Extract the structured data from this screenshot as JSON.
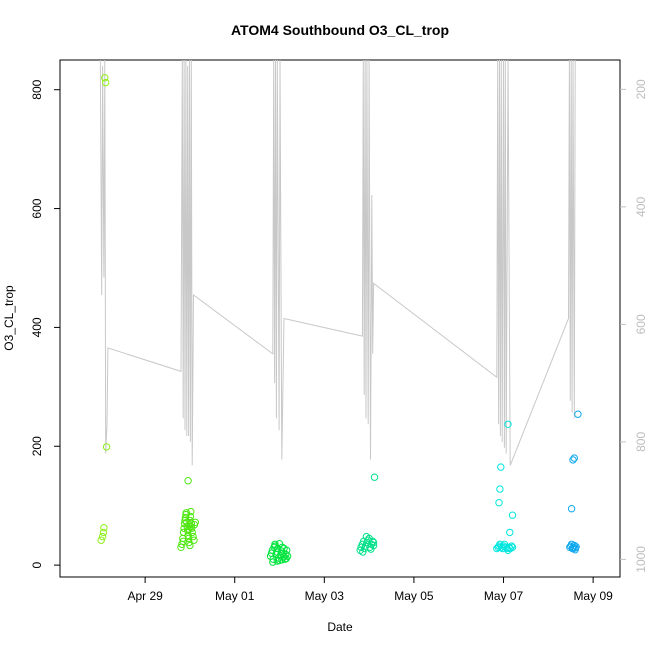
{
  "chart_data": {
    "type": "scatter",
    "title": "ATOM4 Southbound O3_CL_trop",
    "xlabel": "Date",
    "ylabel": "O3_CL_trop",
    "x_unit": "day of 2018 (Apr 29 = 0)",
    "xlim": [
      -1.9,
      10.6
    ],
    "ylim": [
      -20,
      850
    ],
    "x_ticks": [
      {
        "value": 0,
        "label": "Apr 29"
      },
      {
        "value": 2,
        "label": "May 01"
      },
      {
        "value": 4,
        "label": "May 03"
      },
      {
        "value": 6,
        "label": "May 05"
      },
      {
        "value": 8,
        "label": "May 07"
      },
      {
        "value": 10,
        "label": "May 09"
      }
    ],
    "y_ticks": [
      0,
      200,
      400,
      600,
      800
    ],
    "y2": {
      "reversed": true,
      "lim": [
        150,
        1030
      ],
      "ticks": [
        200,
        400,
        600,
        800,
        1000
      ],
      "color": "#c0c0c0"
    },
    "pressure_trace": [
      [
        -1.0,
        150
      ],
      [
        -0.97,
        550
      ],
      [
        -0.95,
        160
      ],
      [
        -0.92,
        520
      ],
      [
        -0.9,
        150
      ],
      [
        -0.88,
        820
      ],
      [
        -0.85,
        770
      ],
      [
        -0.83,
        640
      ],
      [
        0.8,
        680
      ],
      [
        0.83,
        150
      ],
      [
        0.85,
        760
      ],
      [
        0.87,
        150
      ],
      [
        0.89,
        780
      ],
      [
        0.91,
        150
      ],
      [
        0.93,
        790
      ],
      [
        0.95,
        160
      ],
      [
        0.97,
        790
      ],
      [
        0.99,
        150
      ],
      [
        1.01,
        800
      ],
      [
        1.03,
        150
      ],
      [
        1.05,
        840
      ],
      [
        1.08,
        550
      ],
      [
        2.85,
        650
      ],
      [
        2.87,
        150
      ],
      [
        2.89,
        700
      ],
      [
        2.91,
        150
      ],
      [
        2.93,
        760
      ],
      [
        2.95,
        150
      ],
      [
        2.99,
        780
      ],
      [
        3.01,
        150
      ],
      [
        3.05,
        830
      ],
      [
        3.1,
        590
      ],
      [
        4.85,
        620
      ],
      [
        4.87,
        150
      ],
      [
        4.89,
        720
      ],
      [
        4.91,
        150
      ],
      [
        4.93,
        760
      ],
      [
        4.95,
        150
      ],
      [
        4.98,
        770
      ],
      [
        5.0,
        150
      ],
      [
        5.03,
        830
      ],
      [
        5.06,
        380
      ],
      [
        5.08,
        650
      ],
      [
        5.1,
        530
      ],
      [
        7.85,
        690
      ],
      [
        7.87,
        150
      ],
      [
        7.89,
        770
      ],
      [
        7.91,
        150
      ],
      [
        7.93,
        790
      ],
      [
        7.95,
        150
      ],
      [
        7.97,
        800
      ],
      [
        8.0,
        150
      ],
      [
        8.02,
        810
      ],
      [
        8.04,
        150
      ],
      [
        8.06,
        820
      ],
      [
        8.1,
        150
      ],
      [
        8.15,
        840
      ],
      [
        9.45,
        590
      ],
      [
        9.47,
        150
      ],
      [
        9.49,
        730
      ],
      [
        9.51,
        150
      ],
      [
        9.53,
        750
      ],
      [
        9.55,
        150
      ],
      [
        9.58,
        760
      ],
      [
        9.6,
        150
      ]
    ],
    "series": [
      {
        "color": "#8ef01a",
        "x": [
          -0.98,
          -0.95,
          -0.93,
          -0.92,
          -0.9,
          -0.88,
          -0.86
        ],
        "y": [
          42,
          48,
          55,
          63,
          820,
          812,
          199
        ]
      },
      {
        "color": "#4ee60f",
        "x": [
          0.8,
          0.82,
          0.84,
          0.85,
          0.86,
          0.87,
          0.88,
          0.89,
          0.9,
          0.91,
          0.92,
          0.93,
          0.94,
          0.95,
          0.96,
          0.97,
          0.98,
          0.99,
          1.0,
          1.01,
          1.02,
          1.03,
          1.04,
          1.05,
          1.07,
          1.09,
          1.1,
          1.12,
          0.96,
          0.98,
          1.0,
          1.02
        ],
        "y": [
          30,
          35,
          45,
          40,
          55,
          62,
          70,
          75,
          80,
          85,
          88,
          72,
          65,
          58,
          50,
          45,
          60,
          68,
          75,
          82,
          90,
          70,
          62,
          55,
          48,
          42,
          68,
          72,
          142,
          38,
          33,
          65
        ]
      },
      {
        "color": "#00e43d",
        "x": [
          2.8,
          2.82,
          2.84,
          2.86,
          2.88,
          2.9,
          2.92,
          2.94,
          2.96,
          2.98,
          3.0,
          3.02,
          3.04,
          3.06,
          3.08,
          3.1,
          3.12,
          3.14,
          3.16,
          3.18,
          2.85,
          2.95,
          3.05,
          3.15,
          2.9,
          3.0,
          3.1
        ],
        "y": [
          15,
          20,
          25,
          10,
          30,
          35,
          18,
          22,
          28,
          12,
          8,
          16,
          24,
          30,
          20,
          14,
          10,
          18,
          25,
          15,
          5,
          7,
          9,
          11,
          32,
          36,
          28
        ]
      },
      {
        "color": "#00e08a",
        "x": [
          4.8,
          4.82,
          4.85,
          4.88,
          4.9,
          4.92,
          4.95,
          4.98,
          5.0,
          5.02,
          5.05,
          5.08,
          5.1,
          5.12,
          4.86,
          4.94,
          5.04,
          5.1
        ],
        "y": [
          25,
          30,
          35,
          40,
          28,
          32,
          38,
          42,
          45,
          30,
          35,
          40,
          38,
          148,
          22,
          48,
          27,
          33
        ]
      },
      {
        "color": "#00e6df",
        "x": [
          7.85,
          7.88,
          7.9,
          7.92,
          7.95,
          7.98,
          8.0,
          8.02,
          8.05,
          8.08,
          8.1,
          8.12,
          8.15,
          8.18,
          8.2,
          7.9,
          7.92,
          7.94,
          8.1,
          8.14,
          8.2
        ],
        "y": [
          28,
          30,
          32,
          35,
          30,
          28,
          32,
          35,
          30,
          28,
          25,
          30,
          28,
          32,
          30,
          105,
          128,
          165,
          237,
          55,
          84
        ]
      },
      {
        "color": "#0fa8ef",
        "x": [
          9.48,
          9.5,
          9.52,
          9.54,
          9.56,
          9.58,
          9.6,
          9.62,
          9.52,
          9.55,
          9.58,
          9.66,
          9.55,
          9.6
        ],
        "y": [
          30,
          32,
          35,
          28,
          30,
          33,
          29,
          31,
          95,
          177,
          180,
          254,
          28,
          26
        ]
      }
    ]
  }
}
